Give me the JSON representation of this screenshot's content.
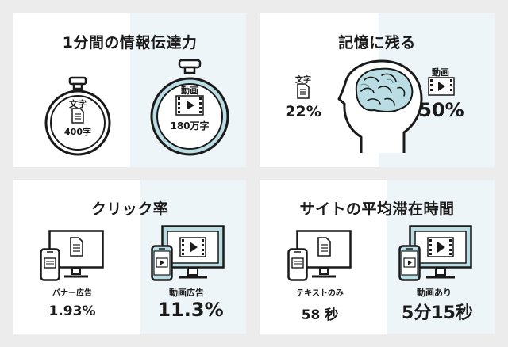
{
  "colors": {
    "background": "#ececec",
    "panel": "#ffffff",
    "tint": "#eef5f8",
    "accent": "#b9dde3",
    "stroke": "#1a1a1a"
  },
  "panels": {
    "info": {
      "title": "1分間の情報伝達力",
      "text_label": "文字",
      "text_value": "400字",
      "video_label": "動画",
      "video_value": "180万字"
    },
    "memory": {
      "title": "記憶に残る",
      "text_label": "文字",
      "text_value": "22%",
      "video_label": "動画",
      "video_value": "50%"
    },
    "click": {
      "title": "クリック率",
      "text_label": "バナー広告",
      "text_value": "1.93%",
      "video_label": "動画広告",
      "video_value": "11.3%"
    },
    "time": {
      "title": "サイトの平均滞在時間",
      "text_label": "テキストのみ",
      "text_value": "58 秒",
      "video_label": "動画あり",
      "video_value": "5分15秒"
    }
  },
  "icons": [
    "stopwatch-icon",
    "document-icon",
    "video-icon",
    "head-brain-icon",
    "monitor-icon",
    "smartphone-icon"
  ]
}
